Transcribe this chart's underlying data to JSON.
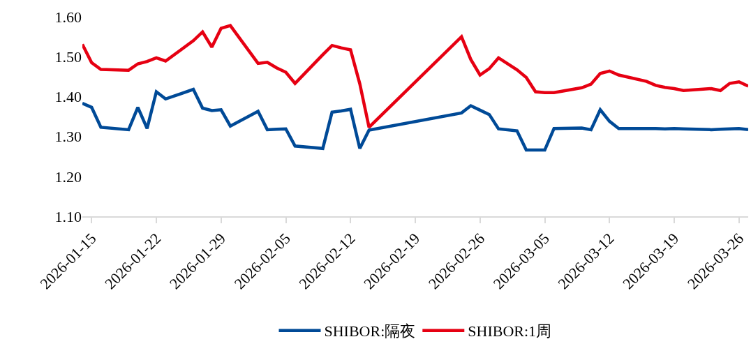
{
  "chart_data": {
    "type": "line",
    "x": [
      "2026-01-14",
      "2026-01-15",
      "2026-01-16",
      "2026-01-19",
      "2026-01-20",
      "2026-01-21",
      "2026-01-22",
      "2026-01-23",
      "2026-01-26",
      "2026-01-27",
      "2026-01-28",
      "2026-01-29",
      "2026-01-30",
      "2026-02-02",
      "2026-02-03",
      "2026-02-04",
      "2026-02-05",
      "2026-02-06",
      "2026-02-09",
      "2026-02-10",
      "2026-02-11",
      "2026-02-12",
      "2026-02-13",
      "2026-02-14",
      "2026-02-24",
      "2026-02-25",
      "2026-02-26",
      "2026-02-27",
      "2026-02-28",
      "2026-03-02",
      "2026-03-03",
      "2026-03-04",
      "2026-03-05",
      "2026-03-06",
      "2026-03-09",
      "2026-03-10",
      "2026-03-11",
      "2026-03-12",
      "2026-03-13",
      "2026-03-16",
      "2026-03-17",
      "2026-03-18",
      "2026-03-19",
      "2026-03-20",
      "2026-03-23",
      "2026-03-24",
      "2026-03-25",
      "2026-03-26",
      "2026-03-27"
    ],
    "series": [
      {
        "name": "SHIBOR:隔夜",
        "color": "#004a97",
        "values": [
          1.383,
          1.373,
          1.323,
          1.317,
          1.373,
          1.32,
          1.412,
          1.394,
          1.418,
          1.371,
          1.365,
          1.367,
          1.326,
          1.363,
          1.317,
          1.318,
          1.319,
          1.276,
          1.27,
          1.361,
          1.364,
          1.368,
          1.27,
          1.316,
          1.359,
          1.377,
          1.366,
          1.355,
          1.319,
          1.314,
          1.266,
          1.266,
          1.266,
          1.32,
          1.321,
          1.317,
          1.367,
          1.338,
          1.32,
          1.32,
          1.32,
          1.319,
          1.32,
          1.319,
          1.317,
          1.318,
          1.319,
          1.32,
          1.317
        ]
      },
      {
        "name": "SHIBOR:1周",
        "color": "#e60012",
        "values": [
          1.531,
          1.485,
          1.468,
          1.466,
          1.482,
          1.488,
          1.497,
          1.489,
          1.54,
          1.562,
          1.524,
          1.571,
          1.578,
          1.483,
          1.486,
          1.472,
          1.461,
          1.433,
          1.505,
          1.528,
          1.522,
          1.517,
          1.432,
          1.323,
          1.55,
          1.493,
          1.454,
          1.47,
          1.497,
          1.467,
          1.448,
          1.412,
          1.41,
          1.41,
          1.422,
          1.431,
          1.458,
          1.464,
          1.454,
          1.438,
          1.428,
          1.423,
          1.42,
          1.415,
          1.42,
          1.415,
          1.433,
          1.437,
          1.426
        ]
      }
    ],
    "xlim": [
      "2026-01-14",
      "2026-03-27"
    ],
    "xticks": [
      "2026-01-15",
      "2026-01-22",
      "2026-01-29",
      "2026-02-05",
      "2026-02-12",
      "2026-02-19",
      "2026-02-26",
      "2026-03-05",
      "2026-03-12",
      "2026-03-19",
      "2026-03-26"
    ],
    "ylim": [
      1.1,
      1.6
    ],
    "yticks": [
      {
        "value": 1.1,
        "label": "1.10"
      },
      {
        "value": 1.2,
        "label": "1.20"
      },
      {
        "value": 1.3,
        "label": "1.30"
      },
      {
        "value": 1.4,
        "label": "1.40"
      },
      {
        "value": 1.5,
        "label": "1.50"
      },
      {
        "value": 1.6,
        "label": "1.60"
      }
    ],
    "grid": false,
    "legend": "bottom",
    "marker": "none",
    "line_style": "solid"
  }
}
